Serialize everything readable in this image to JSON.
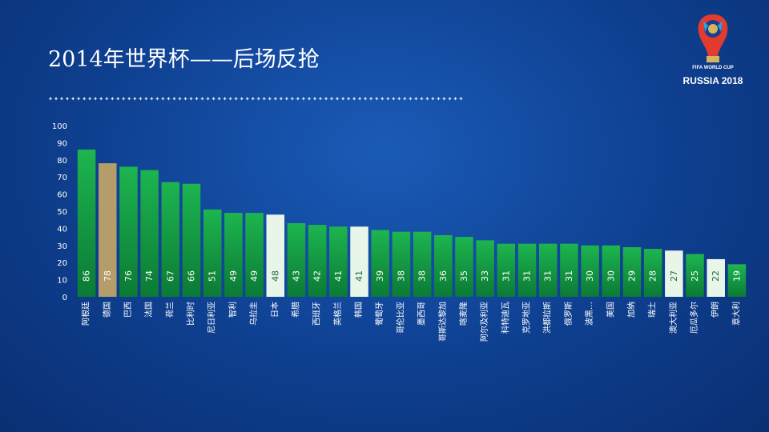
{
  "header": {
    "title": "2014年世界杯——后场反抢"
  },
  "logo": {
    "line1": "FIFA WORLD CUP",
    "line2": "RUSSIA 2018"
  },
  "colors": {
    "bar_green_top": "#1db54f",
    "bar_green_bottom": "#0b7a35",
    "bar_highlight_gold": "#b59c6b",
    "bar_highlight_white": "#e8f6ea",
    "text_white": "#ffffff"
  },
  "chart_data": {
    "type": "bar",
    "title": "",
    "xlabel": "",
    "ylabel": "",
    "ylim": [
      0,
      100
    ],
    "yticks": [
      0,
      10,
      20,
      30,
      40,
      50,
      60,
      70,
      80,
      90,
      100
    ],
    "grid": false,
    "categories": [
      "阿根廷",
      "德国",
      "巴西",
      "法国",
      "荷兰",
      "比利时",
      "尼日利亚",
      "智利",
      "乌拉圭",
      "日本",
      "希腊",
      "西班牙",
      "英格兰",
      "韩国",
      "葡萄牙",
      "哥伦比亚",
      "墨西哥",
      "哥斯达黎加",
      "喀麦隆",
      "阿尔及利亚",
      "科特迪瓦",
      "克罗地亚",
      "洪都拉斯",
      "俄罗斯",
      "波黑…",
      "美国",
      "加纳",
      "瑞士",
      "澳大利亚",
      "厄瓜多尔",
      "伊朗",
      "意大利"
    ],
    "values": [
      86,
      78,
      76,
      74,
      67,
      66,
      51,
      49,
      49,
      48,
      43,
      42,
      41,
      41,
      39,
      38,
      38,
      36,
      35,
      33,
      31,
      31,
      31,
      31,
      30,
      30,
      29,
      28,
      27,
      25,
      22,
      19
    ],
    "value_labels": [
      "86",
      "78",
      "76",
      "74",
      "67",
      "66",
      "51",
      "49",
      "49",
      "48",
      "43",
      "42",
      "41",
      "41",
      "39",
      "38",
      "38",
      "36",
      "35",
      "33",
      "31",
      "31",
      "31",
      "31",
      "30",
      "30",
      "29",
      "28",
      "27",
      "25",
      "22",
      "19"
    ],
    "highlight": {
      "德国": "gold",
      "日本": "white",
      "韩国": "white",
      "澳大利亚": "white",
      "伊朗": "white"
    }
  }
}
